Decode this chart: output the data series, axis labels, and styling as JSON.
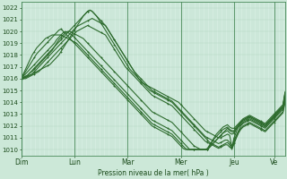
{
  "xlabel": "Pression niveau de la mer( hPa )",
  "bg_color": "#cce8d8",
  "plot_bg_color": "#d4ece0",
  "line_color": "#2d6b2d",
  "ylim": [
    1009.5,
    1022.5
  ],
  "yticks": [
    1010,
    1011,
    1012,
    1013,
    1014,
    1015,
    1016,
    1017,
    1018,
    1019,
    1020,
    1021,
    1022
  ],
  "day_labels": [
    "Dim",
    "Lun",
    "Mar",
    "Mer",
    "Jeu",
    "Ve"
  ],
  "day_positions": [
    0,
    24,
    48,
    72,
    96,
    114
  ],
  "num_points": 120,
  "lines": [
    [
      1016.0,
      1016.05,
      1016.1,
      1016.2,
      1016.3,
      1016.4,
      1016.5,
      1016.6,
      1016.7,
      1016.8,
      1016.9,
      1017.0,
      1017.1,
      1017.2,
      1017.4,
      1017.6,
      1017.8,
      1018.0,
      1018.3,
      1018.6,
      1018.9,
      1019.2,
      1019.5,
      1019.8,
      1020.1,
      1020.4,
      1020.7,
      1021.0,
      1021.3,
      1021.5,
      1021.7,
      1021.8,
      1021.7,
      1021.5,
      1021.3,
      1021.0,
      1020.7,
      1020.4,
      1020.1,
      1019.8,
      1019.5,
      1019.2,
      1018.9,
      1018.6,
      1018.3,
      1018.0,
      1017.7,
      1017.4,
      1017.1,
      1016.8,
      1016.6,
      1016.4,
      1016.2,
      1016.0,
      1015.8,
      1015.6,
      1015.5,
      1015.4,
      1015.3,
      1015.2,
      1015.1,
      1015.0,
      1014.9,
      1014.8,
      1014.7,
      1014.6,
      1014.5,
      1014.4,
      1014.3,
      1014.2,
      1014.1,
      1014.0,
      1013.8,
      1013.6,
      1013.4,
      1013.2,
      1013.0,
      1012.8,
      1012.6,
      1012.4,
      1012.2,
      1012.0,
      1011.8,
      1011.6,
      1011.5,
      1011.4,
      1011.3,
      1011.2,
      1011.1,
      1011.0,
      1011.0,
      1011.1,
      1011.2,
      1011.3,
      1011.2,
      1010.2,
      1011.0,
      1011.5,
      1012.0,
      1012.3,
      1012.5,
      1012.6,
      1012.7,
      1012.8,
      1012.7,
      1012.6,
      1012.5,
      1012.4,
      1012.3,
      1012.2,
      1012.0,
      1012.2,
      1012.4,
      1012.6,
      1012.8,
      1013.0,
      1013.2,
      1013.4,
      1013.6,
      1014.5
    ],
    [
      1016.0,
      1016.1,
      1016.2,
      1016.3,
      1016.5,
      1016.7,
      1016.9,
      1017.1,
      1017.3,
      1017.5,
      1017.7,
      1017.9,
      1018.1,
      1018.3,
      1018.5,
      1018.7,
      1018.9,
      1019.1,
      1019.3,
      1019.5,
      1019.7,
      1019.9,
      1020.1,
      1020.3,
      1020.5,
      1020.7,
      1020.9,
      1021.1,
      1021.3,
      1021.5,
      1021.7,
      1021.8,
      1021.7,
      1021.5,
      1021.3,
      1021.1,
      1020.9,
      1020.7,
      1020.5,
      1020.2,
      1019.9,
      1019.6,
      1019.3,
      1019.0,
      1018.7,
      1018.4,
      1018.1,
      1017.8,
      1017.5,
      1017.2,
      1016.9,
      1016.6,
      1016.3,
      1016.0,
      1015.8,
      1015.6,
      1015.4,
      1015.2,
      1015.0,
      1014.9,
      1014.8,
      1014.7,
      1014.6,
      1014.5,
      1014.4,
      1014.3,
      1014.2,
      1014.1,
      1014.0,
      1013.8,
      1013.6,
      1013.4,
      1013.2,
      1013.0,
      1012.8,
      1012.6,
      1012.4,
      1012.2,
      1012.0,
      1011.8,
      1011.6,
      1011.4,
      1011.2,
      1011.0,
      1010.8,
      1010.6,
      1010.5,
      1010.4,
      1010.3,
      1010.2,
      1010.3,
      1010.4,
      1010.5,
      1010.6,
      1010.4,
      1010.0,
      1010.5,
      1011.0,
      1011.5,
      1011.8,
      1012.0,
      1012.1,
      1012.2,
      1012.3,
      1012.2,
      1012.1,
      1012.0,
      1011.9,
      1011.8,
      1011.7,
      1011.6,
      1011.8,
      1012.0,
      1012.2,
      1012.4,
      1012.6,
      1012.8,
      1013.0,
      1013.2,
      1014.2
    ],
    [
      1016.0,
      1016.0,
      1016.1,
      1016.2,
      1016.3,
      1016.4,
      1016.6,
      1016.8,
      1017.0,
      1017.2,
      1017.4,
      1017.6,
      1017.8,
      1018.0,
      1018.2,
      1018.4,
      1018.6,
      1018.8,
      1019.0,
      1019.2,
      1019.4,
      1019.6,
      1019.8,
      1020.0,
      1020.2,
      1020.4,
      1020.5,
      1020.6,
      1020.7,
      1020.8,
      1020.9,
      1021.0,
      1021.1,
      1021.0,
      1020.9,
      1020.8,
      1020.7,
      1020.6,
      1020.5,
      1020.2,
      1019.9,
      1019.6,
      1019.3,
      1019.0,
      1018.7,
      1018.4,
      1018.1,
      1017.8,
      1017.5,
      1017.2,
      1016.9,
      1016.6,
      1016.4,
      1016.2,
      1016.0,
      1015.8,
      1015.6,
      1015.4,
      1015.2,
      1015.0,
      1014.9,
      1014.8,
      1014.7,
      1014.6,
      1014.5,
      1014.4,
      1014.3,
      1014.2,
      1014.1,
      1013.9,
      1013.7,
      1013.5,
      1013.3,
      1013.1,
      1012.9,
      1012.7,
      1012.5,
      1012.3,
      1012.1,
      1011.9,
      1011.7,
      1011.5,
      1011.3,
      1011.1,
      1011.0,
      1010.9,
      1010.8,
      1010.7,
      1010.6,
      1010.5,
      1010.6,
      1010.7,
      1010.8,
      1010.8,
      1010.6,
      1010.2,
      1010.8,
      1011.2,
      1011.6,
      1012.0,
      1012.2,
      1012.3,
      1012.4,
      1012.5,
      1012.4,
      1012.3,
      1012.2,
      1012.1,
      1012.0,
      1011.9,
      1011.8,
      1012.0,
      1012.2,
      1012.4,
      1012.6,
      1012.8,
      1013.0,
      1013.2,
      1013.4,
      1014.3
    ],
    [
      1016.0,
      1016.0,
      1016.0,
      1016.1,
      1016.2,
      1016.3,
      1016.4,
      1016.5,
      1016.6,
      1016.8,
      1017.0,
      1017.2,
      1017.4,
      1017.6,
      1017.8,
      1018.0,
      1018.2,
      1018.4,
      1018.6,
      1018.8,
      1019.0,
      1019.2,
      1019.4,
      1019.6,
      1019.8,
      1020.0,
      1020.1,
      1020.2,
      1020.3,
      1020.4,
      1020.5,
      1020.4,
      1020.3,
      1020.2,
      1020.1,
      1020.0,
      1019.9,
      1019.8,
      1019.7,
      1019.4,
      1019.1,
      1018.8,
      1018.5,
      1018.2,
      1017.9,
      1017.6,
      1017.3,
      1017.0,
      1016.8,
      1016.6,
      1016.4,
      1016.2,
      1016.0,
      1015.8,
      1015.6,
      1015.4,
      1015.2,
      1015.0,
      1014.8,
      1014.6,
      1014.5,
      1014.4,
      1014.3,
      1014.2,
      1014.1,
      1014.0,
      1013.9,
      1013.8,
      1013.7,
      1013.5,
      1013.3,
      1013.1,
      1012.9,
      1012.7,
      1012.5,
      1012.3,
      1012.1,
      1011.9,
      1011.7,
      1011.5,
      1011.3,
      1011.1,
      1010.9,
      1010.7,
      1010.6,
      1010.5,
      1010.4,
      1010.3,
      1010.2,
      1010.1,
      1010.2,
      1010.3,
      1010.4,
      1010.4,
      1010.2,
      1010.1,
      1010.6,
      1011.0,
      1011.4,
      1011.7,
      1011.9,
      1012.0,
      1012.1,
      1012.2,
      1012.1,
      1012.0,
      1011.9,
      1011.8,
      1011.7,
      1011.6,
      1011.5,
      1011.7,
      1011.9,
      1012.1,
      1012.3,
      1012.5,
      1012.7,
      1012.9,
      1013.1,
      1014.0
    ],
    [
      1016.0,
      1016.1,
      1016.2,
      1016.3,
      1016.5,
      1016.6,
      1016.8,
      1017.0,
      1017.2,
      1017.4,
      1017.6,
      1017.8,
      1018.0,
      1018.2,
      1018.4,
      1018.7,
      1019.0,
      1019.3,
      1019.5,
      1019.7,
      1019.9,
      1020.0,
      1020.0,
      1019.9,
      1019.8,
      1019.7,
      1019.6,
      1019.5,
      1019.4,
      1019.2,
      1019.0,
      1018.8,
      1018.6,
      1018.4,
      1018.2,
      1018.0,
      1017.8,
      1017.6,
      1017.4,
      1017.2,
      1017.0,
      1016.8,
      1016.6,
      1016.4,
      1016.2,
      1016.0,
      1015.8,
      1015.6,
      1015.4,
      1015.2,
      1015.0,
      1014.8,
      1014.6,
      1014.4,
      1014.2,
      1014.0,
      1013.8,
      1013.6,
      1013.4,
      1013.2,
      1013.1,
      1013.0,
      1012.9,
      1012.8,
      1012.7,
      1012.6,
      1012.5,
      1012.4,
      1012.3,
      1012.1,
      1011.9,
      1011.7,
      1011.5,
      1011.3,
      1011.1,
      1010.9,
      1010.7,
      1010.5,
      1010.3,
      1010.2,
      1010.1,
      1010.0,
      1010.0,
      1010.0,
      1010.0,
      1010.2,
      1010.4,
      1010.6,
      1010.8,
      1011.0,
      1011.2,
      1011.4,
      1011.6,
      1011.8,
      1011.6,
      1011.5,
      1011.5,
      1011.8,
      1012.0,
      1012.2,
      1012.4,
      1012.5,
      1012.6,
      1012.7,
      1012.6,
      1012.5,
      1012.4,
      1012.3,
      1012.2,
      1012.1,
      1012.0,
      1012.2,
      1012.4,
      1012.6,
      1012.8,
      1013.0,
      1013.2,
      1013.4,
      1013.6,
      1014.8
    ],
    [
      1016.0,
      1016.2,
      1016.4,
      1016.6,
      1016.8,
      1017.0,
      1017.2,
      1017.4,
      1017.6,
      1017.8,
      1018.0,
      1018.2,
      1018.4,
      1018.6,
      1018.8,
      1019.0,
      1019.3,
      1019.5,
      1019.7,
      1019.9,
      1020.0,
      1019.9,
      1019.8,
      1019.7,
      1019.5,
      1019.3,
      1019.1,
      1018.9,
      1018.7,
      1018.5,
      1018.3,
      1018.1,
      1017.9,
      1017.7,
      1017.5,
      1017.3,
      1017.1,
      1016.9,
      1016.7,
      1016.5,
      1016.3,
      1016.1,
      1015.9,
      1015.7,
      1015.5,
      1015.3,
      1015.1,
      1014.9,
      1014.7,
      1014.5,
      1014.3,
      1014.1,
      1013.9,
      1013.7,
      1013.5,
      1013.3,
      1013.1,
      1012.9,
      1012.7,
      1012.5,
      1012.4,
      1012.3,
      1012.2,
      1012.1,
      1012.0,
      1011.9,
      1011.8,
      1011.7,
      1011.6,
      1011.4,
      1011.2,
      1011.0,
      1010.8,
      1010.6,
      1010.4,
      1010.2,
      1010.0,
      1010.0,
      1010.0,
      1010.0,
      1010.0,
      1010.0,
      1010.0,
      1010.0,
      1010.0,
      1010.2,
      1010.4,
      1010.6,
      1010.8,
      1011.0,
      1011.2,
      1011.4,
      1011.5,
      1011.6,
      1011.4,
      1011.3,
      1011.4,
      1011.7,
      1011.9,
      1012.1,
      1012.3,
      1012.4,
      1012.5,
      1012.6,
      1012.5,
      1012.4,
      1012.3,
      1012.2,
      1012.1,
      1012.0,
      1011.9,
      1012.1,
      1012.3,
      1012.5,
      1012.7,
      1012.9,
      1013.1,
      1013.3,
      1013.5,
      1014.6
    ],
    [
      1016.0,
      1016.3,
      1016.6,
      1016.9,
      1017.2,
      1017.5,
      1017.8,
      1018.1,
      1018.3,
      1018.5,
      1018.7,
      1018.9,
      1019.1,
      1019.3,
      1019.5,
      1019.7,
      1019.9,
      1020.1,
      1020.2,
      1020.0,
      1019.8,
      1019.6,
      1019.4,
      1019.2,
      1019.0,
      1018.8,
      1018.6,
      1018.4,
      1018.2,
      1018.0,
      1017.8,
      1017.6,
      1017.4,
      1017.2,
      1017.0,
      1016.8,
      1016.6,
      1016.4,
      1016.2,
      1016.0,
      1015.8,
      1015.6,
      1015.4,
      1015.2,
      1015.0,
      1014.8,
      1014.6,
      1014.4,
      1014.2,
      1014.0,
      1013.8,
      1013.6,
      1013.4,
      1013.2,
      1013.0,
      1012.8,
      1012.6,
      1012.4,
      1012.2,
      1012.0,
      1011.9,
      1011.8,
      1011.7,
      1011.6,
      1011.5,
      1011.4,
      1011.3,
      1011.2,
      1011.1,
      1010.9,
      1010.7,
      1010.5,
      1010.3,
      1010.1,
      1010.0,
      1010.0,
      1010.0,
      1010.0,
      1010.0,
      1010.0,
      1010.0,
      1010.0,
      1010.0,
      1010.0,
      1010.0,
      1010.3,
      1010.6,
      1010.9,
      1011.1,
      1011.3,
      1011.5,
      1011.7,
      1011.8,
      1011.9,
      1011.7,
      1011.6,
      1011.6,
      1011.9,
      1012.1,
      1012.3,
      1012.5,
      1012.6,
      1012.7,
      1012.8,
      1012.7,
      1012.6,
      1012.5,
      1012.4,
      1012.3,
      1012.2,
      1012.1,
      1012.3,
      1012.5,
      1012.7,
      1012.9,
      1013.1,
      1013.3,
      1013.5,
      1013.7,
      1014.8
    ],
    [
      1016.0,
      1016.4,
      1016.8,
      1017.2,
      1017.6,
      1018.0,
      1018.3,
      1018.6,
      1018.8,
      1019.0,
      1019.2,
      1019.4,
      1019.5,
      1019.6,
      1019.7,
      1019.7,
      1019.7,
      1019.7,
      1019.7,
      1019.6,
      1019.5,
      1019.4,
      1019.3,
      1019.2,
      1019.1,
      1019.0,
      1018.8,
      1018.6,
      1018.4,
      1018.2,
      1018.0,
      1017.8,
      1017.6,
      1017.4,
      1017.2,
      1017.0,
      1016.8,
      1016.6,
      1016.4,
      1016.2,
      1016.0,
      1015.8,
      1015.6,
      1015.4,
      1015.2,
      1015.0,
      1014.8,
      1014.6,
      1014.4,
      1014.2,
      1014.0,
      1013.8,
      1013.6,
      1013.4,
      1013.2,
      1013.0,
      1012.8,
      1012.6,
      1012.4,
      1012.2,
      1012.1,
      1012.0,
      1011.9,
      1011.8,
      1011.7,
      1011.6,
      1011.5,
      1011.4,
      1011.3,
      1011.1,
      1010.9,
      1010.7,
      1010.5,
      1010.3,
      1010.1,
      1010.0,
      1010.0,
      1010.0,
      1010.0,
      1010.0,
      1010.0,
      1010.0,
      1010.0,
      1010.0,
      1010.1,
      1010.4,
      1010.7,
      1011.0,
      1011.3,
      1011.5,
      1011.7,
      1011.9,
      1012.0,
      1012.1,
      1011.9,
      1011.8,
      1011.8,
      1012.0,
      1012.2,
      1012.4,
      1012.6,
      1012.7,
      1012.8,
      1012.9,
      1012.8,
      1012.7,
      1012.6,
      1012.5,
      1012.4,
      1012.3,
      1012.2,
      1012.4,
      1012.6,
      1012.8,
      1013.0,
      1013.2,
      1013.4,
      1013.6,
      1013.8,
      1014.9
    ]
  ]
}
